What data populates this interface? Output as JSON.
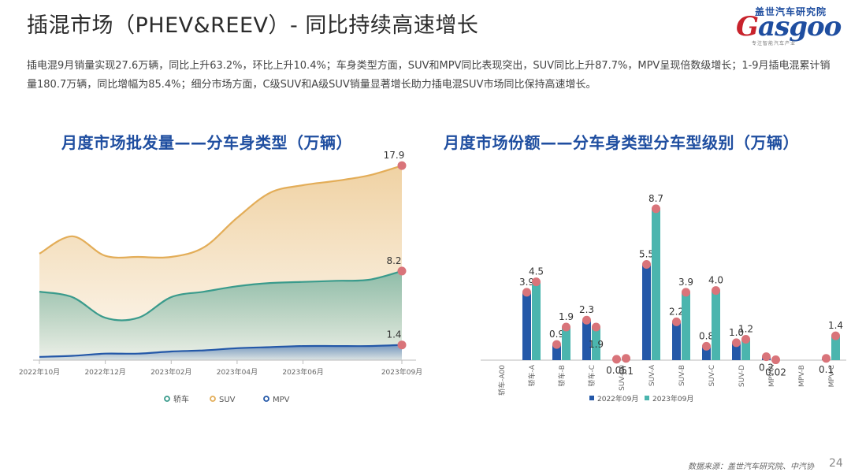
{
  "header": {
    "title": "插混市场（PHEV&REEV）- 同比持续高速增长",
    "logo_cn": "盖世汽车研究院",
    "logo_word_first": "G",
    "logo_word_rest": "asgoo",
    "logo_tagline": "专注智能汽车产业",
    "summary": "插电混9月销量实现27.6万辆，同比上升63.2%，环比上升10.4%；车身类型方面，SUV和MPV同比表现突出，SUV同比上升87.7%，MPV呈现倍数级增长；1-9月插电混累计销量180.7万辆，同比增幅为85.4%；细分市场方面，C级SUV和A级SUV销量显著增长助力插电混SUV市场同比保持高速增长。"
  },
  "footer": {
    "source": "数据来源：盖世汽车研究院、中汽协",
    "page": "24"
  },
  "colors": {
    "sedan": "#3a9b8c",
    "suv": "#e3ad58",
    "mpv": "#2458a8",
    "bar2022": "#2458a8",
    "bar2023": "#4bb5ae",
    "marker": "#d9747a",
    "title": "#1f4ea0"
  },
  "chart_data": [
    {
      "type": "area",
      "title": "月度市场批发量——分车身类型（万辆）",
      "x": [
        "2022年10月",
        "2022年11月",
        "2022年12月",
        "2023年01月",
        "2023年02月",
        "2023年03月",
        "2023年04月",
        "2023年05月",
        "2023年06月",
        "2023年07月",
        "2023年08月",
        "2023年09月"
      ],
      "x_tick_labels": [
        "2022年10月",
        "2022年12月",
        "2023年02月",
        "2023年04月",
        "2023年06月",
        "2023年09月"
      ],
      "series": [
        {
          "name": "SUV",
          "values": [
            9.8,
            11.4,
            9.6,
            9.5,
            9.5,
            10.4,
            13.1,
            15.4,
            16.1,
            16.5,
            17.0,
            17.9
          ]
        },
        {
          "name": "轿车",
          "values": [
            6.3,
            5.8,
            3.9,
            3.9,
            5.8,
            6.3,
            6.8,
            7.1,
            7.2,
            7.3,
            7.4,
            8.2
          ]
        },
        {
          "name": "MPV",
          "values": [
            0.3,
            0.4,
            0.6,
            0.6,
            0.8,
            0.9,
            1.1,
            1.2,
            1.3,
            1.3,
            1.3,
            1.4
          ]
        }
      ],
      "end_labels": [
        "17.9",
        "8.2",
        "1.4"
      ],
      "ylim": [
        0,
        19
      ],
      "legend": [
        "轿车",
        "SUV",
        "MPV"
      ],
      "legend_position": "bottom",
      "grid": false
    },
    {
      "type": "bar",
      "title": "月度市场份额——分车身类型分车型级别（万辆）",
      "categories": [
        "轿车-A00",
        "轿车-A",
        "轿车-B",
        "轿车-C",
        "SUV-A0",
        "SUV-A",
        "SUV-B",
        "SUV-C",
        "SUV-D",
        "MPV-A",
        "MPV-B",
        "MPV-C"
      ],
      "series": [
        {
          "name": "2022年09月",
          "values": [
            null,
            3.9,
            0.9,
            2.3,
            0.05,
            5.5,
            2.2,
            0.8,
            1.0,
            0.2,
            null,
            0.1
          ]
        },
        {
          "name": "2023年09月",
          "values": [
            null,
            4.5,
            1.9,
            1.9,
            0.1,
            8.7,
            3.9,
            4.0,
            1.2,
            0.02,
            null,
            1.4
          ]
        }
      ],
      "labels_2022": [
        "",
        "3.9",
        "0.9",
        "2.3",
        "0.05",
        "5.5",
        "2.2",
        "0.8",
        "1.0",
        "0.2",
        "",
        "0.1"
      ],
      "labels_2023": [
        "",
        "4.5",
        "1.9",
        "1.9",
        "0.1",
        "8.7",
        "3.9",
        "4.0",
        "1.2",
        "0.02",
        "",
        "1.4"
      ],
      "ylim": [
        0,
        9.6
      ],
      "legend": [
        "2022年09月",
        "2023年09月"
      ],
      "legend_position": "bottom",
      "grid": false
    }
  ]
}
